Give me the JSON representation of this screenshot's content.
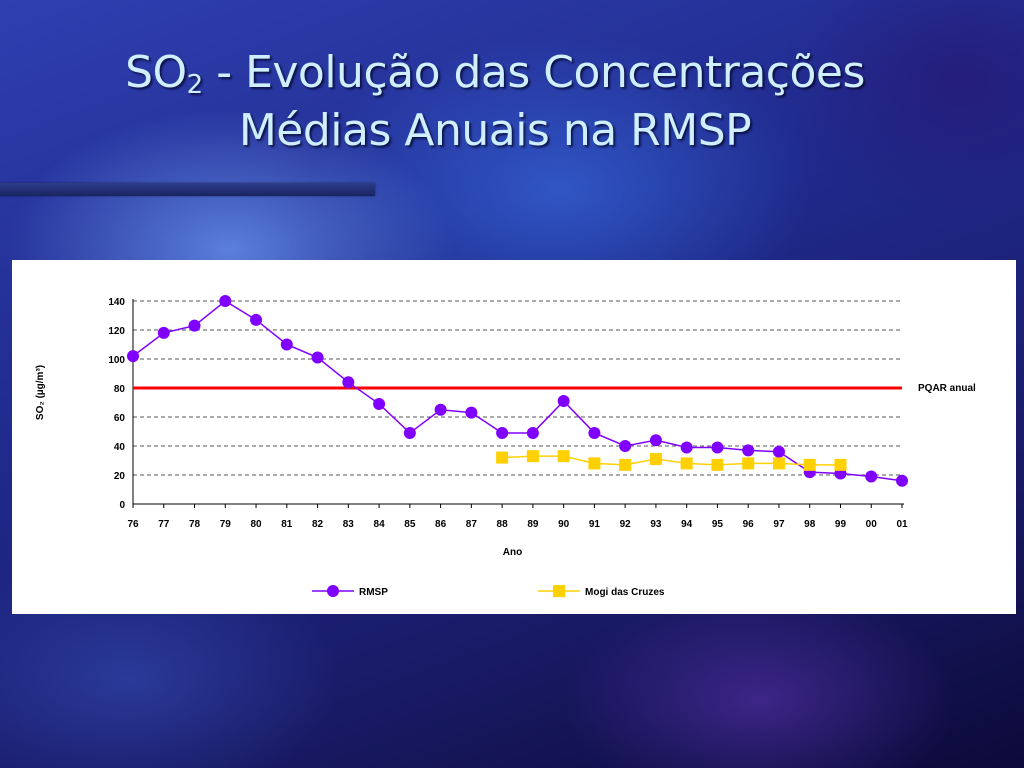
{
  "slide": {
    "title_so": "SO",
    "title_sub": "2",
    "title_line1_rest": " - Evolução das Concentrações",
    "title_line2": "Médias Anuais na RMSP"
  },
  "chart_data": {
    "type": "line",
    "xlabel": "Ano",
    "ylabel": "SO₂ (µg/m³)",
    "ylim": [
      0,
      140
    ],
    "yticks": [
      0,
      20,
      40,
      60,
      80,
      100,
      120,
      140
    ],
    "grid": "horizontal dashed",
    "legend_position": "bottom",
    "categories": [
      "76",
      "77",
      "78",
      "79",
      "80",
      "81",
      "82",
      "83",
      "84",
      "85",
      "86",
      "87",
      "88",
      "89",
      "90",
      "91",
      "92",
      "93",
      "94",
      "95",
      "96",
      "97",
      "98",
      "99",
      "00",
      "01"
    ],
    "series": [
      {
        "name": "RMSP",
        "color": "#8000ff",
        "marker": "circle",
        "values": [
          102,
          118,
          123,
          140,
          127,
          110,
          101,
          84,
          69,
          49,
          65,
          63,
          49,
          49,
          71,
          49,
          40,
          44,
          39,
          39,
          37,
          36,
          22,
          21,
          19,
          16
        ]
      },
      {
        "name": "Mogi das Cruzes",
        "color": "#ffd000",
        "marker": "square",
        "values": [
          null,
          null,
          null,
          null,
          null,
          null,
          null,
          null,
          null,
          null,
          null,
          null,
          32,
          33,
          33,
          28,
          27,
          31,
          28,
          27,
          28,
          28,
          27,
          27,
          null,
          null
        ]
      }
    ],
    "reference_line": {
      "label": "PQAR anual",
      "value": 80,
      "color": "#ff0000"
    }
  }
}
